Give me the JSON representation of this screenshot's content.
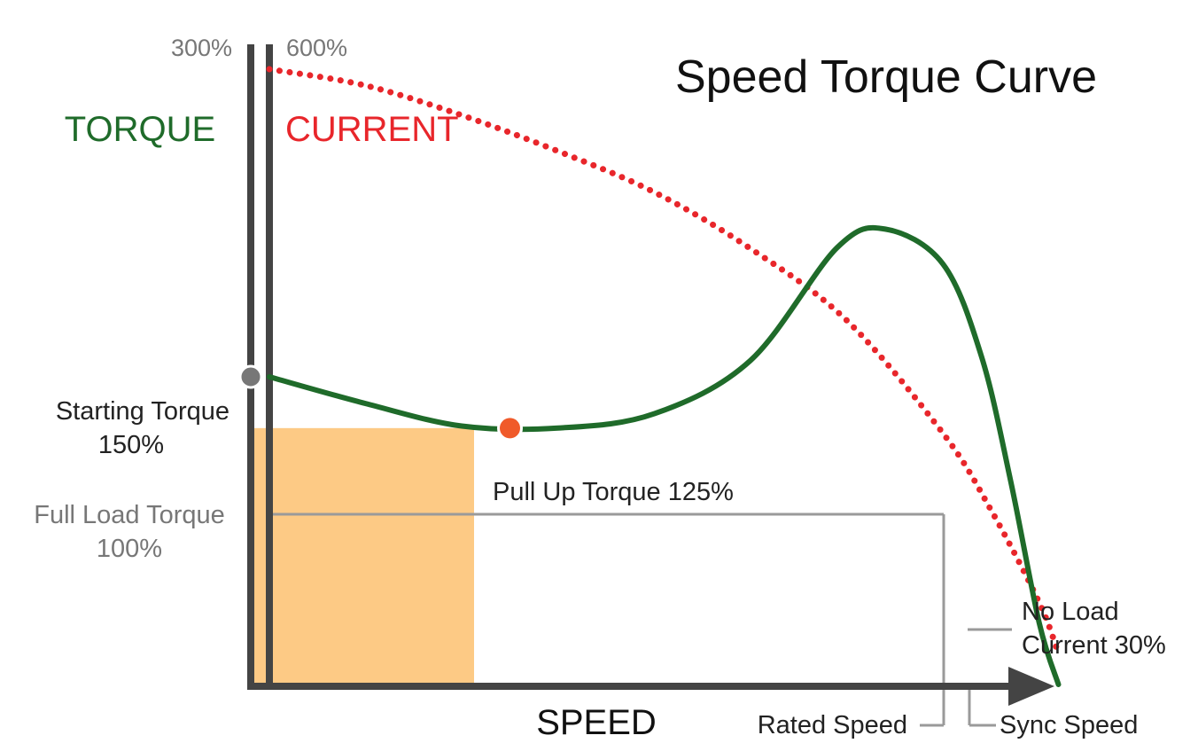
{
  "chart_data": {
    "type": "line",
    "title": "Speed Torque Curve",
    "xlabel": "SPEED",
    "torque_axis": {
      "label": "TORQUE",
      "max_label": "300%",
      "max": 300,
      "color": "#1f6b2a"
    },
    "current_axis": {
      "label": "CURRENT",
      "max_label": "600%",
      "max": 600,
      "color": "#e8262b"
    },
    "xlim": [
      0,
      1
    ],
    "series": [
      {
        "name": "TORQUE",
        "color": "#1f6b2a",
        "x": [
          0,
          0.1,
          0.2,
          0.3,
          0.4,
          0.5,
          0.59,
          0.64,
          0.7,
          0.74,
          0.77,
          0.8,
          0.82
        ],
        "y": [
          150,
          137,
          126,
          125,
          132,
          158,
          213,
          222,
          205,
          160,
          100,
          30,
          0
        ]
      },
      {
        "name": "CURRENT",
        "color": "#e8262b",
        "x": [
          0,
          0.1,
          0.2,
          0.3,
          0.4,
          0.5,
          0.6,
          0.7,
          0.75,
          0.8,
          0.82
        ],
        "y": [
          600,
          584,
          555,
          520,
          480,
          425,
          355,
          245,
          170,
          80,
          30
        ]
      }
    ],
    "annotations": {
      "starting_torque": {
        "line1": "Starting Torque",
        "line2": "150%",
        "x": 0,
        "y": 150,
        "color": "#777777"
      },
      "pull_up_torque": {
        "text": "Pull Up Torque 125%",
        "x": 0.25,
        "y": 125,
        "color": "#f05a2a"
      },
      "full_load_torque": {
        "line1": "Full Load Torque",
        "line2": "100%",
        "y": 100,
        "fill": "#fdca85"
      },
      "no_load_current": {
        "line1": "No Load",
        "line2": "Current 30%",
        "value": 30
      },
      "rated_speed": {
        "text": "Rated Speed",
        "x": 0.78
      },
      "sync_speed": {
        "text": "Sync Speed",
        "x": 0.82
      }
    }
  }
}
